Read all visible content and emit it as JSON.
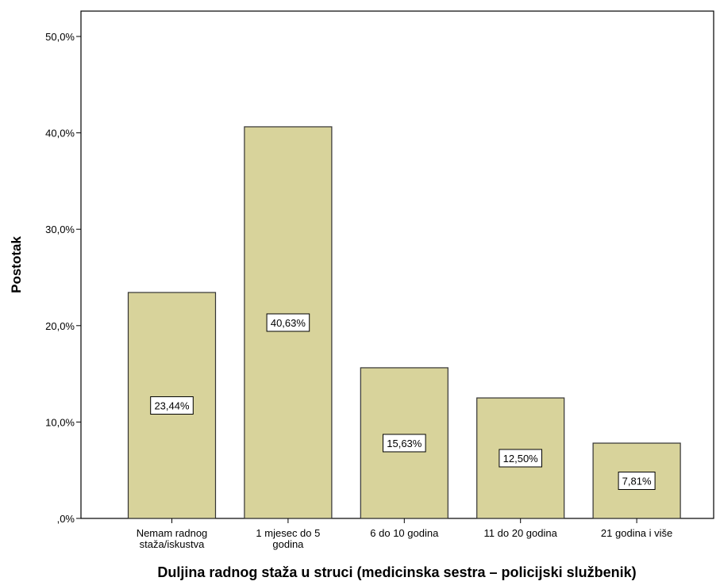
{
  "chart_data": {
    "type": "bar",
    "categories": [
      [
        "Nemam radnog",
        "staža/iskustva"
      ],
      [
        "1 mjesec do 5",
        "godina"
      ],
      [
        "6 do 10 godina"
      ],
      [
        "11 do 20 godina"
      ],
      [
        "21 godina i više"
      ]
    ],
    "values": [
      23.44,
      40.63,
      15.63,
      12.5,
      7.81
    ],
    "data_labels": [
      "23,44%",
      "40,63%",
      "15,63%",
      "12,50%",
      "7,81%"
    ],
    "xlabel": "Duljina radnog staža u struci (medicinska sestra – policijski službenik)",
    "ylabel": "Postotak",
    "ylim": [
      0,
      50
    ],
    "yticks": [
      0,
      10,
      20,
      30,
      40,
      50
    ],
    "ytick_labels": [
      ",0%",
      "10,0%",
      "20,0%",
      "30,0%",
      "40,0%",
      "50,0%"
    ],
    "bar_color": "#d8d39b",
    "bar_edge_color": "#333333",
    "grid": false,
    "legend": false
  }
}
